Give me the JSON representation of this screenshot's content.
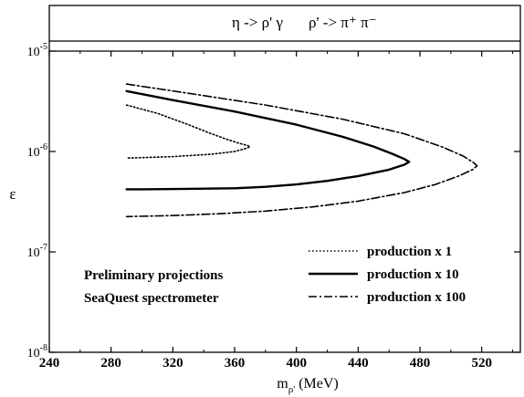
{
  "chart_data": {
    "type": "line",
    "title": "",
    "process_left": "η -> ρ' γ",
    "process_right": "ρ' -> π⁺ π⁻",
    "xlabel_base": "m",
    "xlabel_sub": "ρ'",
    "xlabel_unit": "(MeV)",
    "ylabel": "ε",
    "xlim": [
      240,
      545
    ],
    "ylim_log10": [
      -8,
      -5
    ],
    "y_scale": "log",
    "x_ticks": [
      240,
      280,
      320,
      360,
      400,
      440,
      480,
      520
    ],
    "y_ticks": [
      {
        "base": "10",
        "exp": "-8",
        "value": 1e-08
      },
      {
        "base": "10",
        "exp": "-7",
        "value": 1e-07
      },
      {
        "base": "10",
        "exp": "-6",
        "value": 1e-06
      },
      {
        "base": "10",
        "exp": "-5",
        "value": 1e-05
      }
    ],
    "annotation_lines": [
      "Preliminary projections",
      "SeaQuest spectrometer"
    ],
    "series": [
      {
        "name": "production x 1",
        "style": "dotted",
        "points": [
          [
            290,
            2.9e-06
          ],
          [
            310,
            2.4e-06
          ],
          [
            330,
            1.85e-06
          ],
          [
            345,
            1.5e-06
          ],
          [
            355,
            1.32e-06
          ],
          [
            362,
            1.22e-06
          ],
          [
            368,
            1.15e-06
          ],
          [
            370,
            1.12e-06
          ],
          [
            368,
            1.08e-06
          ],
          [
            360,
            1e-06
          ],
          [
            345,
            9.4e-07
          ],
          [
            320,
            8.9e-07
          ],
          [
            300,
            8.7e-07
          ],
          [
            290,
            8.6e-07
          ]
        ]
      },
      {
        "name": "production x 10",
        "style": "solid",
        "points": [
          [
            290,
            4e-06
          ],
          [
            320,
            3.25e-06
          ],
          [
            360,
            2.5e-06
          ],
          [
            400,
            1.85e-06
          ],
          [
            430,
            1.4e-06
          ],
          [
            450,
            1.12e-06
          ],
          [
            462,
            9.5e-07
          ],
          [
            470,
            8.4e-07
          ],
          [
            473,
            7.9e-07
          ],
          [
            470,
            7.4e-07
          ],
          [
            460,
            6.6e-07
          ],
          [
            440,
            5.7e-07
          ],
          [
            420,
            5.1e-07
          ],
          [
            400,
            4.7e-07
          ],
          [
            380,
            4.45e-07
          ],
          [
            360,
            4.3e-07
          ],
          [
            330,
            4.25e-07
          ],
          [
            300,
            4.2e-07
          ],
          [
            290,
            4.2e-07
          ]
        ]
      },
      {
        "name": "production x 100",
        "style": "dashdot",
        "points": [
          [
            290,
            4.7e-06
          ],
          [
            330,
            3.8e-06
          ],
          [
            380,
            2.9e-06
          ],
          [
            430,
            2.1e-06
          ],
          [
            470,
            1.5e-06
          ],
          [
            495,
            1.1e-06
          ],
          [
            508,
            9e-07
          ],
          [
            515,
            7.7e-07
          ],
          [
            517,
            7.2e-07
          ],
          [
            514,
            6.6e-07
          ],
          [
            505,
            5.7e-07
          ],
          [
            490,
            4.7e-07
          ],
          [
            470,
            3.9e-07
          ],
          [
            440,
            3.2e-07
          ],
          [
            410,
            2.8e-07
          ],
          [
            380,
            2.55e-07
          ],
          [
            350,
            2.4e-07
          ],
          [
            320,
            2.3e-07
          ],
          [
            290,
            2.25e-07
          ]
        ]
      }
    ]
  }
}
